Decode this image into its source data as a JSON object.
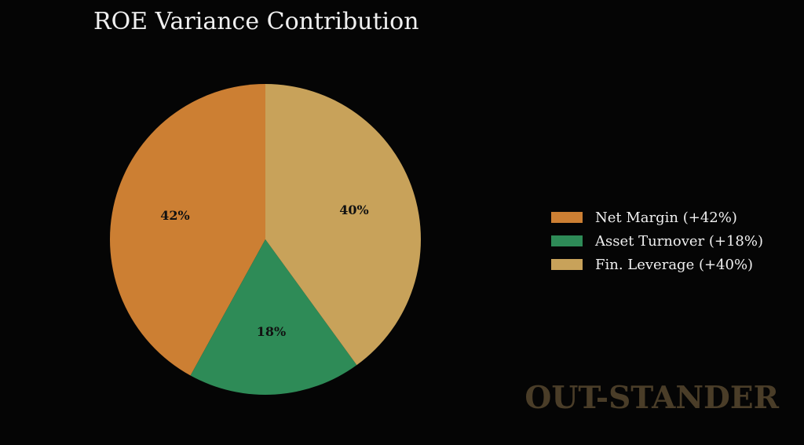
{
  "chart_data": {
    "type": "pie",
    "title": "ROE Variance Contribution",
    "slices": [
      {
        "label": "Net Margin (+42%)",
        "value": 42,
        "display": "42%",
        "color": "#cc7f33"
      },
      {
        "label": "Asset Turnover (+18%)",
        "value": 18,
        "display": "18%",
        "color": "#2e8b57"
      },
      {
        "label": "Fin. Leverage (+40%)",
        "value": 40,
        "display": "40%",
        "color": "#c8a25a"
      }
    ],
    "start": "top",
    "direction": "counterclockwise",
    "legend": "right"
  },
  "watermark": "OUT-STANDER"
}
